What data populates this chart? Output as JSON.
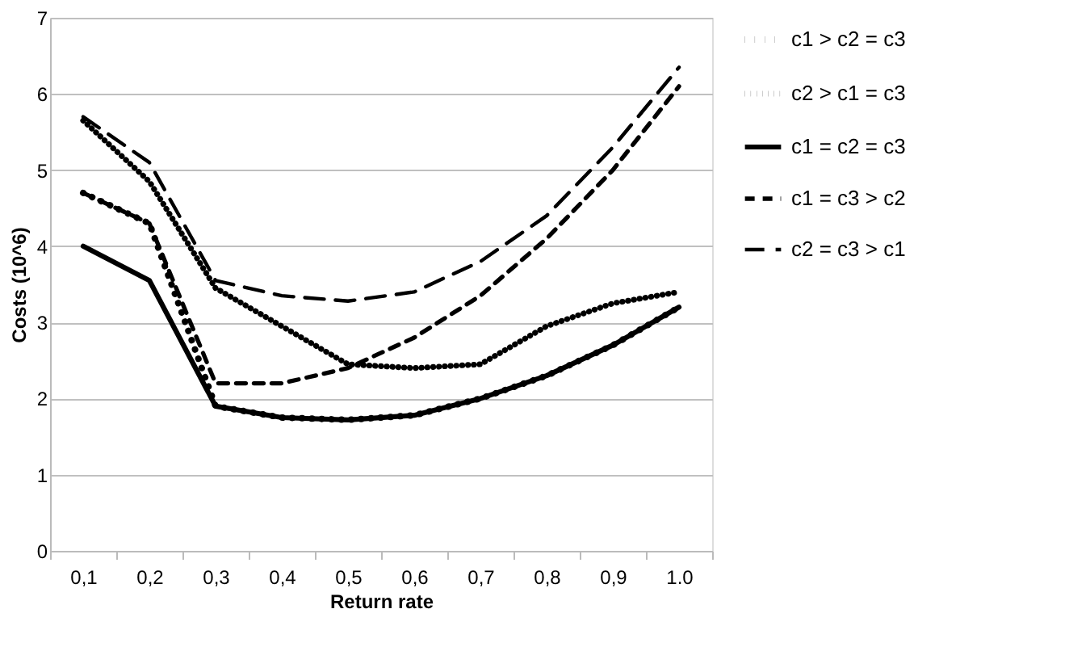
{
  "chart_data": {
    "type": "line",
    "xlabel": "Return rate",
    "ylabel": "Costs (10^6)",
    "categories": [
      "0,1",
      "0,2",
      "0,3",
      "0,4",
      "0,5",
      "0,6",
      "0,7",
      "0,8",
      "0,9",
      "1.0"
    ],
    "ylim": [
      0,
      7
    ],
    "yticks": [
      0,
      1,
      2,
      3,
      4,
      5,
      6,
      7
    ],
    "grid": "y",
    "legend": "right",
    "series": [
      {
        "name": "c1 > c2 = c3",
        "color": "#000000",
        "line_style": "dotted",
        "values": [
          4.7,
          4.3,
          1.9,
          1.75,
          1.72,
          1.78,
          2.0,
          2.3,
          2.7,
          3.2
        ]
      },
      {
        "name": "c2 > c1 = c3",
        "color": "#000000",
        "line_style": "dotted",
        "values": [
          5.65,
          4.85,
          3.45,
          2.95,
          2.45,
          2.4,
          2.45,
          2.95,
          3.25,
          3.4
        ]
      },
      {
        "name": "c1 = c2 = c3",
        "color": "#000000",
        "line_style": "solid",
        "values": [
          4.0,
          3.55,
          1.9,
          1.75,
          1.72,
          1.78,
          2.0,
          2.3,
          2.7,
          3.2
        ]
      },
      {
        "name": "c1 = c3 > c2",
        "color": "#000000",
        "line_style": "dashed",
        "values": [
          4.7,
          4.3,
          2.2,
          2.2,
          2.4,
          2.8,
          3.35,
          4.1,
          5.0,
          6.1
        ]
      },
      {
        "name": "c2 = c3 > c1",
        "color": "#000000",
        "line_style": "dashed",
        "values": [
          5.7,
          5.1,
          3.55,
          3.35,
          3.28,
          3.4,
          3.8,
          4.4,
          5.3,
          6.35
        ]
      }
    ]
  }
}
